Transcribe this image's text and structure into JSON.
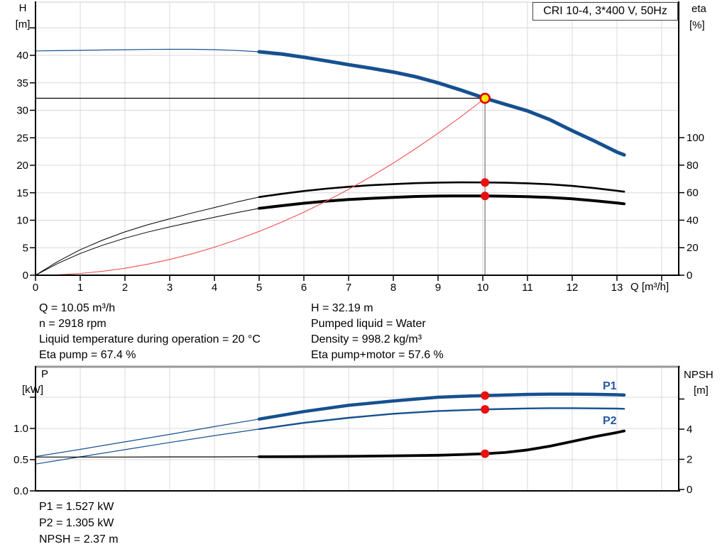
{
  "title_box": {
    "label": "CRI 10-4, 3*400 V, 50Hz"
  },
  "annotations": {
    "top_left": [
      "Q = 10.05 m³/h",
      "n = 2918 rpm",
      "Liquid temperature during operation = 20 °C",
      "Eta pump = 67.4 %"
    ],
    "top_right": [
      "H = 32.19 m",
      "Pumped liquid = Water",
      "Density = 998.2 kg/m³",
      "Eta pump+motor = 57.6 %"
    ],
    "bottom": [
      "P1 = 1.527 kW",
      "P2 = 1.305 kW",
      "NPSH = 2.37 m"
    ]
  },
  "colors": {
    "curve_blue": "#16508F",
    "curve_black": "#000000",
    "system_red": "#F25050",
    "dot_red": "#E81010",
    "duty_fill": "#FFE808",
    "duty_ring": "#DD0000",
    "grid": "#D8D8D8",
    "axis": "#000000",
    "ref_gray": "#909090",
    "label_blue": "#2458A6"
  },
  "chart_data": [
    {
      "type": "line",
      "title": "CRI 10-4, 3*400 V, 50Hz",
      "x_axis": {
        "label": "Q [m³/h]",
        "min": 0,
        "max": 14.4,
        "grid_step": 1,
        "ticks": [
          {
            "v": 0,
            "t": "0"
          },
          {
            "v": 1,
            "t": "1"
          },
          {
            "v": 2,
            "t": "2"
          },
          {
            "v": 3,
            "t": "3"
          },
          {
            "v": 4,
            "t": "4"
          },
          {
            "v": 5,
            "t": "5"
          },
          {
            "v": 6,
            "t": "6"
          },
          {
            "v": 7,
            "t": "7"
          },
          {
            "v": 8,
            "t": "8"
          },
          {
            "v": 9,
            "t": "9"
          },
          {
            "v": 10,
            "t": "10"
          },
          {
            "v": 11,
            "t": "11"
          },
          {
            "v": 12,
            "t": "12"
          },
          {
            "v": 13,
            "t": "13"
          },
          {
            "v": 14,
            "t": ""
          }
        ]
      },
      "y_left": {
        "label": "H",
        "unit": "[m]",
        "min": 0,
        "max": 49.5,
        "ticks": [
          {
            "v": 0,
            "t": "0"
          },
          {
            "v": 5,
            "t": "5"
          },
          {
            "v": 10,
            "t": "10"
          },
          {
            "v": 15,
            "t": "15"
          },
          {
            "v": 20,
            "t": "20"
          },
          {
            "v": 25,
            "t": "25"
          },
          {
            "v": 30,
            "t": "30"
          },
          {
            "v": 35,
            "t": "35"
          },
          {
            "v": 40,
            "t": "40"
          },
          {
            "v": 45,
            "t": ""
          }
        ]
      },
      "y_right": {
        "label": "eta",
        "unit": "[%]",
        "min": 0,
        "max": 100,
        "ticks": [
          {
            "v": 0,
            "t": "0"
          },
          {
            "v": 20,
            "t": "20"
          },
          {
            "v": 40,
            "t": "40"
          },
          {
            "v": 60,
            "t": "60"
          },
          {
            "v": 80,
            "t": "80"
          },
          {
            "v": 100,
            "t": "100"
          }
        ]
      },
      "series": [
        {
          "name": "Head curve H(Q)",
          "axis": "left",
          "color": "#16508F",
          "w_thin": 1.2,
          "w_bold": 5,
          "bold_from": 5,
          "points": [
            [
              0,
              40.8
            ],
            [
              0.5,
              40.85
            ],
            [
              1,
              40.9
            ],
            [
              1.5,
              40.97
            ],
            [
              2,
              41.02
            ],
            [
              2.5,
              41.07
            ],
            [
              3,
              41.1
            ],
            [
              3.5,
              41.1
            ],
            [
              4,
              41.03
            ],
            [
              4.5,
              40.88
            ],
            [
              5,
              40.65
            ],
            [
              5.5,
              40.25
            ],
            [
              6,
              39.65
            ],
            [
              6.5,
              39.0
            ],
            [
              7,
              38.3
            ],
            [
              7.5,
              37.65
            ],
            [
              8,
              36.95
            ],
            [
              8.5,
              36.1
            ],
            [
              9,
              35.0
            ],
            [
              9.5,
              33.7
            ],
            [
              10.05,
              32.19
            ],
            [
              10.5,
              31.1
            ],
            [
              11,
              29.9
            ],
            [
              11.5,
              28.3
            ],
            [
              12,
              26.3
            ],
            [
              12.5,
              24.4
            ],
            [
              13,
              22.4
            ],
            [
              13.16,
              21.9
            ]
          ]
        },
        {
          "name": "Eta pump",
          "axis": "right",
          "color": "#000000",
          "w_thin": 1,
          "w_bold": 2.6,
          "bold_from": 5,
          "points": [
            [
              0,
              0
            ],
            [
              0.5,
              10
            ],
            [
              1,
              18.5
            ],
            [
              1.5,
              25.5
            ],
            [
              2,
              31.5
            ],
            [
              2.5,
              36.6
            ],
            [
              3,
              41
            ],
            [
              3.5,
              45.2
            ],
            [
              4,
              49.2
            ],
            [
              4.5,
              53.2
            ],
            [
              5,
              56.8
            ],
            [
              5.5,
              59.1
            ],
            [
              6,
              61.2
            ],
            [
              6.5,
              62.9
            ],
            [
              7,
              64.3
            ],
            [
              7.5,
              65.4
            ],
            [
              8,
              66.2
            ],
            [
              8.5,
              66.9
            ],
            [
              9,
              67.3
            ],
            [
              9.5,
              67.45
            ],
            [
              10.05,
              67.4
            ],
            [
              10.5,
              67.2
            ],
            [
              11,
              66.8
            ],
            [
              11.5,
              66.1
            ],
            [
              12,
              64.9
            ],
            [
              12.5,
              63.3
            ],
            [
              13,
              61.4
            ],
            [
              13.16,
              60.7
            ]
          ]
        },
        {
          "name": "Eta pump+motor",
          "axis": "right",
          "color": "#000000",
          "w_thin": 1,
          "w_bold": 4,
          "bold_from": 5,
          "points": [
            [
              0,
              0
            ],
            [
              0.5,
              8.6
            ],
            [
              1,
              15.8
            ],
            [
              1.5,
              21.8
            ],
            [
              2,
              26.9
            ],
            [
              2.5,
              31.3
            ],
            [
              3,
              35.1
            ],
            [
              3.5,
              38.7
            ],
            [
              4,
              42.1
            ],
            [
              4.5,
              45.5
            ],
            [
              5,
              48.6
            ],
            [
              5.5,
              50.5
            ],
            [
              6,
              52.3
            ],
            [
              6.5,
              53.8
            ],
            [
              7,
              55.0
            ],
            [
              7.5,
              55.9
            ],
            [
              8,
              56.6
            ],
            [
              8.5,
              57.2
            ],
            [
              9,
              57.5
            ],
            [
              9.5,
              57.65
            ],
            [
              10.05,
              57.6
            ],
            [
              10.5,
              57.4
            ],
            [
              11,
              57.1
            ],
            [
              11.5,
              56.5
            ],
            [
              12,
              55.5
            ],
            [
              12.5,
              54.1
            ],
            [
              13,
              52.5
            ],
            [
              13.16,
              51.9
            ]
          ]
        },
        {
          "name": "System curve",
          "axis": "left",
          "color": "#F25050",
          "w_thin": 1.1,
          "w_bold": 1.1,
          "bold_from": 99,
          "points": [
            [
              0,
              0
            ],
            [
              0.5,
              0.08
            ],
            [
              1,
              0.32
            ],
            [
              1.5,
              0.72
            ],
            [
              2,
              1.27
            ],
            [
              2.5,
              1.99
            ],
            [
              3,
              2.87
            ],
            [
              3.5,
              3.9
            ],
            [
              4,
              5.1
            ],
            [
              4.5,
              6.45
            ],
            [
              5,
              7.97
            ],
            [
              5.5,
              9.64
            ],
            [
              6,
              11.47
            ],
            [
              6.5,
              13.47
            ],
            [
              7,
              15.62
            ],
            [
              7.5,
              17.93
            ],
            [
              8,
              20.4
            ],
            [
              8.5,
              23.03
            ],
            [
              9,
              25.82
            ],
            [
              9.5,
              28.76
            ],
            [
              10.05,
              32.19
            ]
          ]
        }
      ],
      "markers": {
        "duty_point": {
          "q": 10.05,
          "value": 32.19,
          "axis": "left"
        },
        "dots": [
          {
            "q": 10.05,
            "value": 67.4,
            "axis": "right"
          },
          {
            "q": 10.05,
            "value": 57.6,
            "axis": "right"
          }
        ]
      },
      "ref_lines": {
        "horizontal": {
          "value": 32.19,
          "axis": "left",
          "to_q": 10.05
        },
        "vertical": {
          "q": 10.05,
          "from_value": 32.19
        }
      }
    },
    {
      "type": "line",
      "x_axis": {
        "label": "",
        "min": 0,
        "max": 14.4,
        "grid_step": 1,
        "ticks": []
      },
      "y_left": {
        "label": "P",
        "unit": "[kW]",
        "min": 0,
        "max": 2,
        "ticks": [
          {
            "v": 0,
            "t": "0.0"
          },
          {
            "v": 0.5,
            "t": "0.5"
          },
          {
            "v": 1,
            "t": "1.0"
          },
          {
            "v": 1.5,
            "t": ""
          }
        ]
      },
      "y_right": {
        "label": "NPSH",
        "unit": "[m]",
        "min": 0,
        "max": 8,
        "ticks": [
          {
            "v": 0,
            "t": "0"
          },
          {
            "v": 2,
            "t": "2"
          },
          {
            "v": 4,
            "t": "4"
          },
          {
            "v": 6,
            "t": ""
          }
        ]
      },
      "series": [
        {
          "name": "P1 (input power)",
          "label": "P1",
          "axis": "left",
          "color": "#16508F",
          "w_thin": 1.2,
          "w_bold": 4.5,
          "bold_from": 5,
          "points": [
            [
              0,
              0.55
            ],
            [
              1,
              0.665
            ],
            [
              2,
              0.785
            ],
            [
              3,
              0.905
            ],
            [
              4,
              1.03
            ],
            [
              5,
              1.15
            ],
            [
              6,
              1.27
            ],
            [
              7,
              1.37
            ],
            [
              8,
              1.44
            ],
            [
              9,
              1.5
            ],
            [
              9.5,
              1.515
            ],
            [
              10.05,
              1.527
            ],
            [
              10.5,
              1.535
            ],
            [
              11,
              1.545
            ],
            [
              11.5,
              1.55
            ],
            [
              12,
              1.55
            ],
            [
              12.5,
              1.547
            ],
            [
              13,
              1.54
            ],
            [
              13.16,
              1.535
            ]
          ]
        },
        {
          "name": "P2 (shaft power)",
          "label": "P2",
          "axis": "left",
          "color": "#16508F",
          "w_thin": 1.2,
          "w_bold": 2.4,
          "bold_from": 5,
          "points": [
            [
              0,
              0.43
            ],
            [
              1,
              0.545
            ],
            [
              2,
              0.66
            ],
            [
              3,
              0.775
            ],
            [
              4,
              0.885
            ],
            [
              5,
              0.99
            ],
            [
              6,
              1.09
            ],
            [
              7,
              1.17
            ],
            [
              8,
              1.235
            ],
            [
              9,
              1.28
            ],
            [
              10.05,
              1.305
            ],
            [
              10.5,
              1.312
            ],
            [
              11,
              1.32
            ],
            [
              11.5,
              1.325
            ],
            [
              12,
              1.325
            ],
            [
              12.5,
              1.322
            ],
            [
              13,
              1.318
            ],
            [
              13.16,
              1.315
            ]
          ]
        },
        {
          "name": "NPSH",
          "axis": "right",
          "color": "#000000",
          "w_thin": 1.2,
          "w_bold": 3.8,
          "bold_from": 5,
          "points": [
            [
              0,
              2.15
            ],
            [
              1,
              2.15
            ],
            [
              2,
              2.15
            ],
            [
              3,
              2.16
            ],
            [
              4,
              2.16
            ],
            [
              5,
              2.17
            ],
            [
              6,
              2.18
            ],
            [
              7,
              2.2
            ],
            [
              8,
              2.23
            ],
            [
              9,
              2.27
            ],
            [
              9.5,
              2.31
            ],
            [
              10.05,
              2.37
            ],
            [
              10.5,
              2.45
            ],
            [
              11,
              2.62
            ],
            [
              11.5,
              2.87
            ],
            [
              12,
              3.18
            ],
            [
              12.5,
              3.5
            ],
            [
              13,
              3.78
            ],
            [
              13.16,
              3.88
            ]
          ]
        }
      ],
      "markers": {
        "dots": [
          {
            "q": 10.05,
            "value": 1.527,
            "axis": "left"
          },
          {
            "q": 10.05,
            "value": 1.305,
            "axis": "left"
          },
          {
            "q": 10.05,
            "value": 2.37,
            "axis": "right"
          }
        ]
      }
    }
  ]
}
